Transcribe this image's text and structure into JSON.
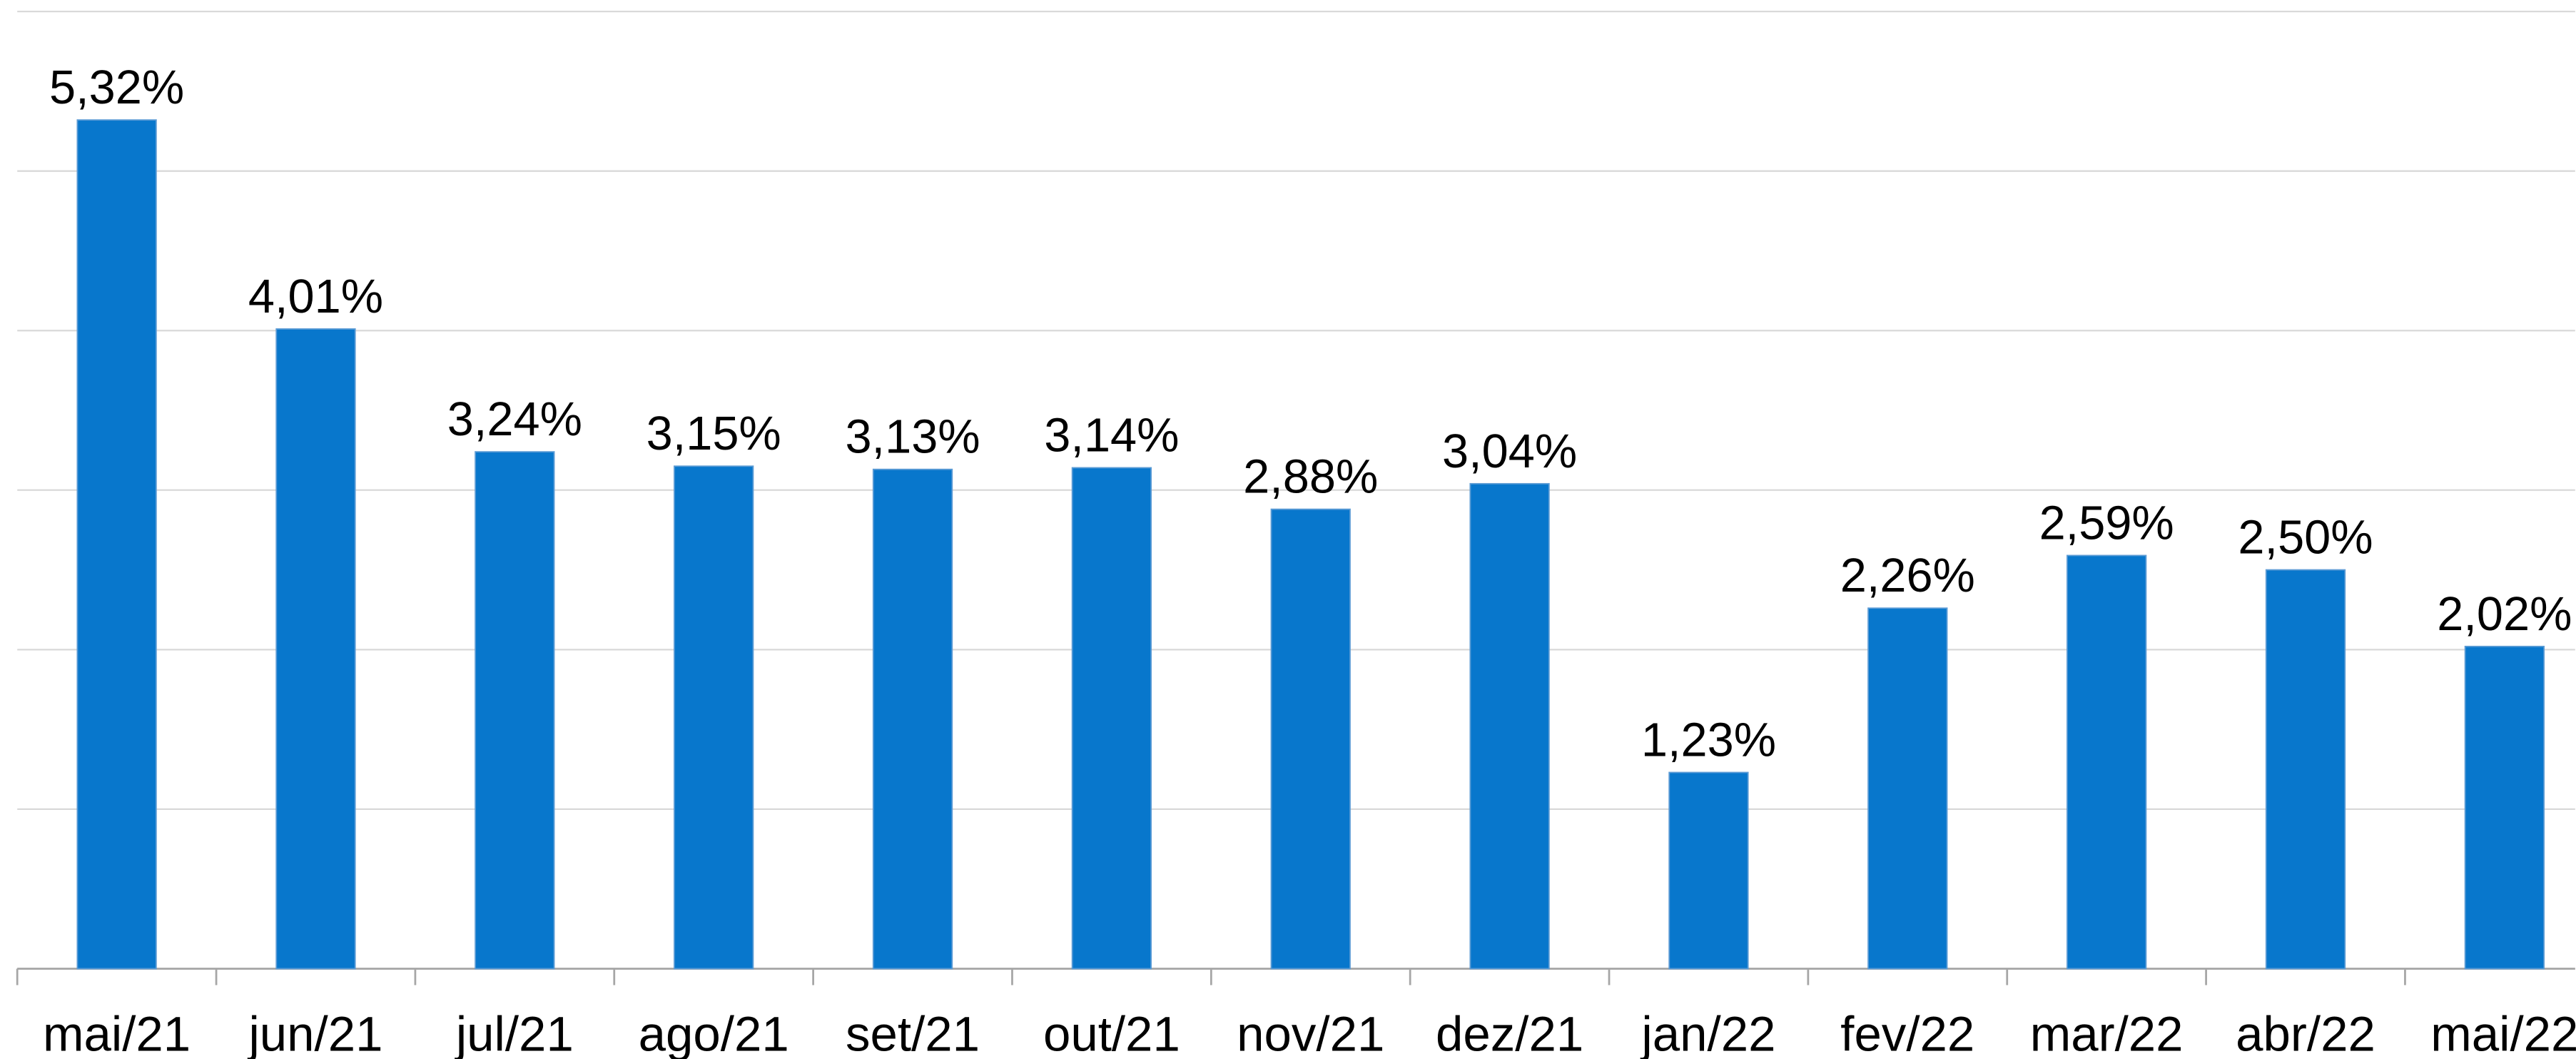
{
  "chart_data": {
    "type": "bar",
    "categories": [
      "mai/21",
      "jun/21",
      "jul/21",
      "ago/21",
      "set/21",
      "out/21",
      "nov/21",
      "dez/21",
      "jan/22",
      "fev/22",
      "mar/22",
      "abr/22",
      "mai/22"
    ],
    "values": [
      5.32,
      4.01,
      3.24,
      3.15,
      3.13,
      3.14,
      2.88,
      3.04,
      1.23,
      2.26,
      2.59,
      2.5,
      2.02
    ],
    "value_labels": [
      "5,32%",
      "4,01%",
      "3,24%",
      "3,15%",
      "3,13%",
      "3,14%",
      "2,88%",
      "3,04%",
      "1,23%",
      "2,26%",
      "2,59%",
      "2,50%",
      "2,02%"
    ],
    "color": "#0877cc",
    "ylim": [
      0,
      6
    ],
    "yticks": [
      0,
      1,
      2,
      3,
      4,
      5,
      6
    ],
    "grid": true
  }
}
